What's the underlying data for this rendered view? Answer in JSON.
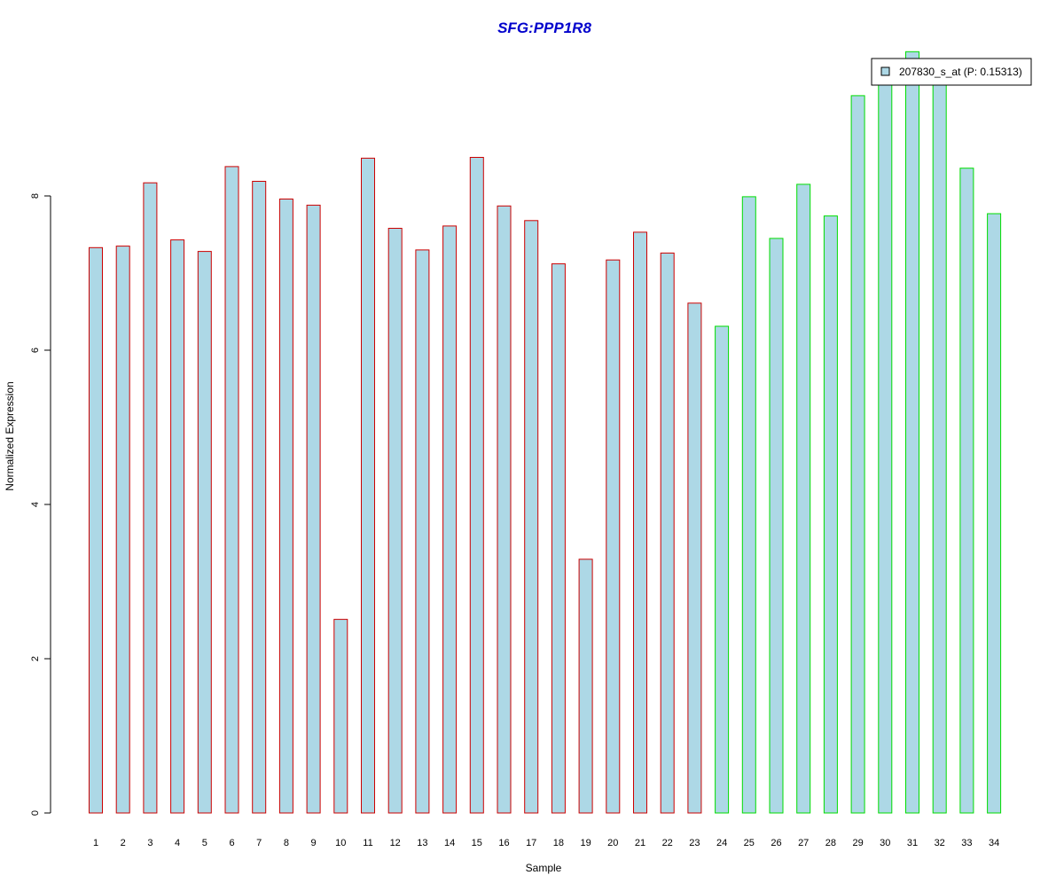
{
  "chart_data": {
    "type": "bar",
    "title": "SFG:PPP1R8",
    "xlabel": "Sample",
    "ylabel": "Normalized Expression",
    "ylim": [
      0,
      9.9
    ],
    "yticks": [
      0,
      2,
      4,
      6,
      8
    ],
    "categories": [
      "1",
      "2",
      "3",
      "4",
      "5",
      "6",
      "7",
      "8",
      "9",
      "10",
      "11",
      "12",
      "13",
      "14",
      "15",
      "16",
      "17",
      "18",
      "19",
      "20",
      "21",
      "22",
      "23",
      "24",
      "25",
      "26",
      "27",
      "28",
      "29",
      "30",
      "31",
      "32",
      "33",
      "34"
    ],
    "series": [
      {
        "name": "207830_s_at (P: 0.15313)",
        "values": [
          7.33,
          7.35,
          8.17,
          7.43,
          7.28,
          8.38,
          8.19,
          7.96,
          7.88,
          2.51,
          8.49,
          7.58,
          7.3,
          7.61,
          8.5,
          7.87,
          7.68,
          7.12,
          3.29,
          7.17,
          7.53,
          7.26,
          6.61,
          6.31,
          7.99,
          7.45,
          8.15,
          7.74,
          9.3,
          9.55,
          9.87,
          9.55,
          8.36,
          7.77
        ]
      }
    ],
    "group_borders": [
      "red",
      "red",
      "red",
      "red",
      "red",
      "red",
      "red",
      "red",
      "red",
      "red",
      "red",
      "red",
      "red",
      "red",
      "red",
      "red",
      "red",
      "red",
      "red",
      "red",
      "red",
      "red",
      "red",
      "green",
      "green",
      "green",
      "green",
      "green",
      "green",
      "green",
      "green",
      "green",
      "green",
      "green"
    ],
    "colors": {
      "bar_fill": "#add8e6",
      "group1_border": "#cc0000",
      "group2_border": "#00dd00",
      "title": "#0000cc"
    },
    "legend_position": "top-right",
    "grid": false
  }
}
